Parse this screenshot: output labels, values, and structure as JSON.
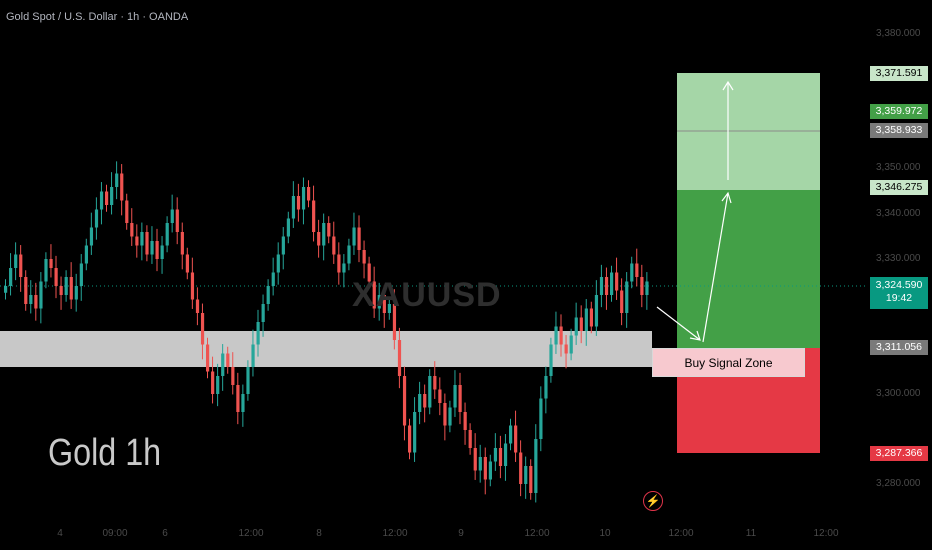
{
  "header": {
    "title": "Gold Spot / U.S. Dollar · 1h · OANDA"
  },
  "overlay": {
    "big_title": "Gold 1h",
    "watermark": "XAUUSD",
    "signal_zone_label": "Buy Signal Zone"
  },
  "colors": {
    "bull": "#26a69a",
    "bear": "#ef5350",
    "target_zone": "#a5d6a7",
    "profit_zone": "#43a047",
    "stop_zone": "#e53945",
    "signal_band": "#c8c8c8",
    "current_price": "#089981"
  },
  "price_labels": {
    "target_top": "3,371.591",
    "target_mid": "3,359.972",
    "gray_level": "3,358.933",
    "profit_top": "3,346.275",
    "current_price": "3,324.590",
    "countdown": "19:42",
    "entry": "3,311.056",
    "stop": "3,287.366"
  },
  "y_ticks": [
    "3,380.000",
    "3,350.000",
    "3,340.000",
    "3,330.000",
    "3,300.000",
    "3,280.000"
  ],
  "x_ticks": [
    "4",
    "09:00",
    "6",
    "12:00",
    "8",
    "12:00",
    "9",
    "12:00",
    "10",
    "12:00",
    "11",
    "12:00"
  ],
  "chart_data": {
    "type": "candlestick",
    "title": "Gold Spot / U.S. Dollar · 1h · OANDA",
    "symbol": "XAUUSD",
    "y_range": [
      3276,
      3385
    ],
    "current_price": 3324.59,
    "close_series": [
      3324,
      3328,
      3331,
      3326,
      3320,
      3322,
      3319,
      3325,
      3330,
      3328,
      3324,
      3322,
      3326,
      3321,
      3324,
      3329,
      3333,
      3337,
      3341,
      3345,
      3342,
      3346,
      3349,
      3343,
      3338,
      3335,
      3333,
      3336,
      3331,
      3334,
      3330,
      3333,
      3338,
      3341,
      3336,
      3331,
      3327,
      3321,
      3318,
      3311,
      3305,
      3300,
      3304,
      3309,
      3306,
      3302,
      3296,
      3300,
      3306,
      3311,
      3316,
      3320,
      3324,
      3327,
      3331,
      3335,
      3339,
      3344,
      3341,
      3346,
      3343,
      3336,
      3333,
      3338,
      3335,
      3331,
      3327,
      3329,
      3333,
      3337,
      3332,
      3329,
      3325,
      3319,
      3322,
      3318,
      3320,
      3312,
      3304,
      3293,
      3287,
      3296,
      3300,
      3297,
      3304,
      3301,
      3298,
      3293,
      3297,
      3302,
      3296,
      3292,
      3288,
      3283,
      3286,
      3281,
      3285,
      3288,
      3284,
      3289,
      3293,
      3287,
      3280,
      3284,
      3278,
      3290,
      3299,
      3304,
      3311,
      3315,
      3311,
      3309,
      3313,
      3317,
      3314,
      3319,
      3315,
      3322,
      3326,
      3322,
      3327,
      3323,
      3318,
      3325,
      3329,
      3326,
      3322,
      3325
    ],
    "signal_band": [
      3306,
      3314
    ],
    "long_position": {
      "entry": 3311.056,
      "stop": 3287.366,
      "take_profit": 3346.275,
      "extended_target": 3371.591,
      "mid_level": 3359.972
    },
    "y_tick_values": [
      3380,
      3350,
      3340,
      3330,
      3300,
      3280
    ]
  }
}
